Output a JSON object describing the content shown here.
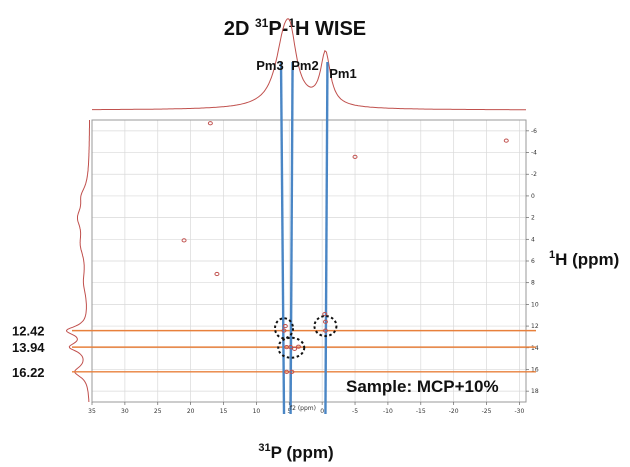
{
  "title": {
    "prefix": "2D ",
    "sup1": "31",
    "mid": "P-",
    "sup2": "1",
    "suffix": "H WISE"
  },
  "xlabel": {
    "sup": "31",
    "text": "P (ppm)"
  },
  "ylabel": {
    "sup": "1",
    "text": "H (ppm)"
  },
  "small_axis_label": "f2 (ppm)",
  "sample_label": "Sample: MCP+10%",
  "colors": {
    "accent": "#e8803c",
    "projection": "#c0504d",
    "blue": "#4a86c5",
    "circle": "#111111",
    "grid": "#d9d9d9"
  },
  "chart_data": {
    "type": "scatter",
    "xlim": [
      35,
      -31
    ],
    "ylim": [
      -7,
      19
    ],
    "x_ticks": [
      35,
      30,
      25,
      20,
      15,
      10,
      5,
      0,
      -5,
      -10,
      -15,
      -20,
      -25,
      -30
    ],
    "y_ticks": [
      -6,
      -4,
      -2,
      0,
      2,
      4,
      6,
      8,
      10,
      12,
      14,
      16,
      18
    ],
    "grid": true,
    "peaks": [
      {
        "label": "Pm3",
        "x": 5.8
      },
      {
        "label": "Pm2",
        "x": 4.8
      },
      {
        "label": "Pm1",
        "x": -0.5
      }
    ],
    "h_markers": [
      {
        "label": "12.42",
        "y": 12.42
      },
      {
        "label": "13.94",
        "y": 13.94
      },
      {
        "label": "16.22",
        "y": 16.22
      }
    ],
    "cross_peaks": [
      {
        "x": 5.8,
        "y": 12.42
      },
      {
        "x": 5.6,
        "y": 12.0
      },
      {
        "x": 5.4,
        "y": 13.94
      },
      {
        "x": 4.8,
        "y": 13.94
      },
      {
        "x": 4.2,
        "y": 14.1
      },
      {
        "x": 3.6,
        "y": 13.9
      },
      {
        "x": 5.4,
        "y": 16.22
      },
      {
        "x": 4.6,
        "y": 16.22
      },
      {
        "x": -0.5,
        "y": 11.6
      },
      {
        "x": -0.5,
        "y": 12.42
      },
      {
        "x": -0.4,
        "y": 10.9
      },
      {
        "x": 21,
        "y": 4.1
      },
      {
        "x": 17,
        "y": -6.7
      },
      {
        "x": -28,
        "y": -5.1
      },
      {
        "x": 16,
        "y": 7.2
      },
      {
        "x": -5,
        "y": -3.6
      }
    ],
    "circled": [
      {
        "x": 5.8,
        "y": 12.2
      },
      {
        "x": 4.7,
        "y": 14.0
      },
      {
        "x": -0.5,
        "y": 12.0
      }
    ]
  }
}
